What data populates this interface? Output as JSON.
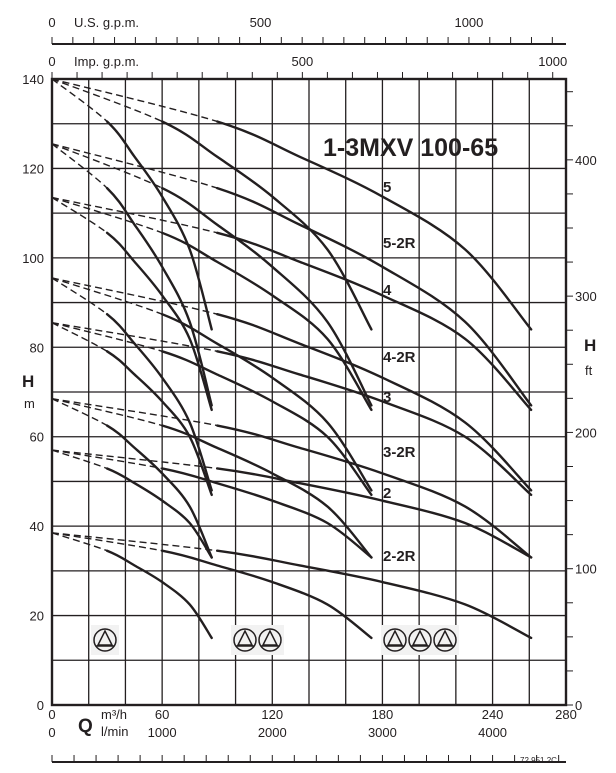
{
  "chart_data": {
    "type": "line",
    "title": "1-3MXV 100-65",
    "document_code": "72.951.2C",
    "grid": true,
    "x_axis": {
      "letter": "Q",
      "unit": "m³/h",
      "range": [
        0,
        280
      ],
      "ticks": [
        0,
        60,
        120,
        180,
        240,
        280
      ],
      "grid_step": 20
    },
    "x_axis_lmin": {
      "unit": "l/min",
      "ticks": [
        0,
        1000,
        2000,
        3000,
        4000
      ],
      "minor_step": 200
    },
    "x_axis_us_gpm": {
      "unit": "U.S. g.p.m.",
      "ticks": [
        0,
        500,
        1000
      ],
      "minor_step": 50
    },
    "x_axis_imp_gpm": {
      "unit": "Imp. g.p.m.",
      "ticks": [
        0,
        500,
        1000
      ],
      "minor_step": 50
    },
    "y_axis": {
      "letter": "H",
      "unit": "m",
      "range": [
        0,
        140
      ],
      "ticks": [
        0,
        20,
        40,
        60,
        80,
        100,
        120,
        140
      ],
      "grid_step": 10
    },
    "y_axis_ft": {
      "letter": "H",
      "unit": "ft",
      "ticks": [
        0,
        100,
        200,
        300,
        400
      ],
      "minor_step": 25
    },
    "curve_labels": [
      "5",
      "5-2R",
      "4",
      "4-2R",
      "3",
      "3-2R",
      "2",
      "2-2R"
    ],
    "pump_groups": [
      {
        "pumps": 1,
        "icon": "pump-symbol-icon"
      },
      {
        "pumps": 2,
        "icon": "pump-symbol-icon"
      },
      {
        "pumps": 3,
        "icon": "pump-symbol-icon"
      }
    ],
    "dashed_below_flow_per_pump": 30,
    "series": [
      {
        "curve": "5",
        "pumps": 1,
        "x": [
          0,
          30,
          45,
          60,
          75,
          87
        ],
        "y": [
          140,
          130.5,
          122.6,
          113.7,
          101.9,
          84
        ]
      },
      {
        "curve": "5",
        "pumps": 2,
        "x": [
          0,
          60,
          90,
          120,
          150,
          174
        ],
        "y": [
          140,
          130.5,
          122.6,
          113.7,
          101.9,
          84
        ]
      },
      {
        "curve": "5",
        "pumps": 3,
        "x": [
          0,
          90,
          135,
          180,
          225,
          261
        ],
        "y": [
          140,
          130.5,
          122.6,
          113.7,
          101.9,
          84
        ]
      },
      {
        "curve": "5-2R",
        "pumps": 1,
        "x": [
          0,
          30,
          45,
          60,
          75,
          87
        ],
        "y": [
          125.5,
          115.6,
          107.4,
          98,
          85.7,
          67
        ]
      },
      {
        "curve": "5-2R",
        "pumps": 2,
        "x": [
          0,
          60,
          90,
          120,
          150,
          174
        ],
        "y": [
          125.5,
          115.6,
          107.4,
          98,
          85.7,
          67
        ]
      },
      {
        "curve": "5-2R",
        "pumps": 3,
        "x": [
          0,
          90,
          135,
          180,
          225,
          261
        ],
        "y": [
          125.5,
          115.6,
          107.4,
          98,
          85.7,
          67
        ]
      },
      {
        "curve": "4",
        "pumps": 1,
        "x": [
          0,
          30,
          45,
          60,
          75,
          87
        ],
        "y": [
          113.5,
          105.6,
          99.1,
          91.6,
          81.9,
          66
        ]
      },
      {
        "curve": "4",
        "pumps": 2,
        "x": [
          0,
          60,
          90,
          120,
          150,
          174
        ],
        "y": [
          113.5,
          105.6,
          99.1,
          91.6,
          81.9,
          66
        ]
      },
      {
        "curve": "4",
        "pumps": 3,
        "x": [
          0,
          90,
          135,
          180,
          225,
          261
        ],
        "y": [
          113.5,
          105.6,
          99.1,
          91.6,
          81.9,
          66
        ]
      },
      {
        "curve": "4-2R",
        "pumps": 1,
        "x": [
          0,
          30,
          45,
          60,
          75,
          87
        ],
        "y": [
          95.5,
          87.4,
          80.8,
          73.2,
          63.2,
          48
        ]
      },
      {
        "curve": "4-2R",
        "pumps": 2,
        "x": [
          0,
          60,
          90,
          120,
          150,
          174
        ],
        "y": [
          95.5,
          87.4,
          80.8,
          73.2,
          63.2,
          48
        ]
      },
      {
        "curve": "4-2R",
        "pumps": 3,
        "x": [
          0,
          90,
          135,
          180,
          225,
          261
        ],
        "y": [
          95.5,
          87.4,
          80.8,
          73.2,
          63.2,
          48
        ]
      },
      {
        "curve": "3",
        "pumps": 1,
        "x": [
          0,
          30,
          45,
          60,
          75,
          87
        ],
        "y": [
          85.5,
          79.1,
          73.9,
          67.9,
          60,
          47
        ]
      },
      {
        "curve": "3",
        "pumps": 2,
        "x": [
          0,
          60,
          90,
          120,
          150,
          174
        ],
        "y": [
          85.5,
          79.1,
          73.9,
          67.9,
          60,
          47
        ]
      },
      {
        "curve": "3",
        "pumps": 3,
        "x": [
          0,
          90,
          135,
          180,
          225,
          261
        ],
        "y": [
          85.5,
          79.1,
          73.9,
          67.9,
          60,
          47
        ]
      },
      {
        "curve": "3-2R",
        "pumps": 1,
        "x": [
          0,
          30,
          45,
          60,
          75,
          87
        ],
        "y": [
          68.5,
          62.5,
          57.5,
          51.8,
          44.4,
          33
        ]
      },
      {
        "curve": "3-2R",
        "pumps": 2,
        "x": [
          0,
          60,
          90,
          120,
          150,
          174
        ],
        "y": [
          68.5,
          62.5,
          57.5,
          51.8,
          44.4,
          33
        ]
      },
      {
        "curve": "3-2R",
        "pumps": 3,
        "x": [
          0,
          90,
          135,
          180,
          225,
          261
        ],
        "y": [
          68.5,
          62.5,
          57.5,
          51.8,
          44.4,
          33
        ]
      },
      {
        "curve": "2",
        "pumps": 1,
        "x": [
          0,
          30,
          45,
          60,
          75,
          87
        ],
        "y": [
          57,
          52.9,
          49.6,
          45.7,
          40.7,
          33
        ]
      },
      {
        "curve": "2",
        "pumps": 2,
        "x": [
          0,
          60,
          90,
          120,
          150,
          174
        ],
        "y": [
          57,
          52.9,
          49.6,
          45.7,
          40.7,
          33
        ]
      },
      {
        "curve": "2",
        "pumps": 3,
        "x": [
          0,
          90,
          135,
          180,
          225,
          261
        ],
        "y": [
          57,
          52.9,
          49.6,
          45.7,
          40.7,
          33
        ]
      },
      {
        "curve": "2-2R",
        "pumps": 1,
        "x": [
          0,
          30,
          45,
          60,
          75,
          87
        ],
        "y": [
          38.5,
          34.5,
          31.2,
          27.5,
          22.5,
          15
        ]
      },
      {
        "curve": "2-2R",
        "pumps": 2,
        "x": [
          0,
          60,
          90,
          120,
          150,
          174
        ],
        "y": [
          38.5,
          34.5,
          31.2,
          27.5,
          22.5,
          15
        ]
      },
      {
        "curve": "2-2R",
        "pumps": 3,
        "x": [
          0,
          90,
          135,
          180,
          225,
          261
        ],
        "y": [
          38.5,
          34.5,
          31.2,
          27.5,
          22.5,
          15
        ]
      }
    ],
    "colors": {
      "ink": "#231f20",
      "icon_bg": "#f2f2f2"
    }
  }
}
